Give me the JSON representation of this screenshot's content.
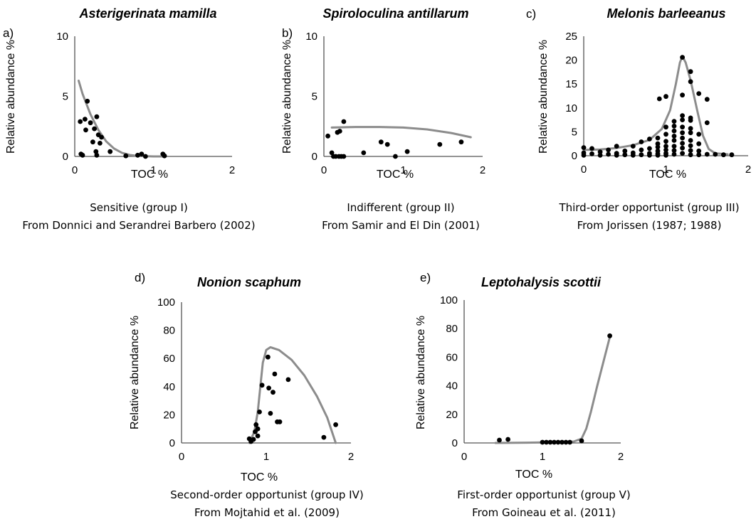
{
  "colors": {
    "points": "#000000",
    "curve": "#8c8c8c",
    "axis": "#555555"
  },
  "chart_data": [
    {
      "type": "scatter",
      "panel_letter": "a)",
      "title": "Asterigerinata mamilla",
      "xlabel": "TOC %",
      "ylabel": "Relative abundance %",
      "xlim": [
        0,
        2
      ],
      "ylim": [
        0,
        10
      ],
      "x_ticks": [
        "0",
        "1",
        "2"
      ],
      "y_ticks": [
        "0",
        "5",
        "10"
      ],
      "caption_line1": "Sensitive (group I)",
      "caption_line2": "From Donnici and Serandrei Barbero (2002)",
      "points": [
        [
          0.07,
          2.9
        ],
        [
          0.08,
          0.2
        ],
        [
          0.1,
          0.1
        ],
        [
          0.13,
          3.1
        ],
        [
          0.14,
          2.2
        ],
        [
          0.16,
          4.6
        ],
        [
          0.2,
          2.8
        ],
        [
          0.23,
          1.2
        ],
        [
          0.25,
          2.3
        ],
        [
          0.27,
          0.4
        ],
        [
          0.28,
          0.1
        ],
        [
          0.28,
          3.3
        ],
        [
          0.3,
          1.8
        ],
        [
          0.32,
          1.1
        ],
        [
          0.34,
          1.6
        ],
        [
          0.45,
          0.4
        ],
        [
          0.65,
          0.05
        ],
        [
          0.8,
          0.1
        ],
        [
          0.85,
          0.2
        ],
        [
          0.9,
          0.0
        ],
        [
          1.12,
          0.2
        ],
        [
          1.14,
          0.05
        ]
      ],
      "fit_curve": [
        [
          0.05,
          6.3
        ],
        [
          0.1,
          5.2
        ],
        [
          0.2,
          3.5
        ],
        [
          0.3,
          2.2
        ],
        [
          0.4,
          1.25
        ],
        [
          0.5,
          0.65
        ],
        [
          0.6,
          0.3
        ],
        [
          0.7,
          0.12
        ],
        [
          0.8,
          0.05
        ],
        [
          1.0,
          0.0
        ],
        [
          1.15,
          0.0
        ]
      ]
    },
    {
      "type": "scatter",
      "panel_letter": "b)",
      "title": "Spiroloculina antillarum",
      "xlabel": "TOC %",
      "ylabel": "Relative abundance %",
      "xlim": [
        0,
        2
      ],
      "ylim": [
        0,
        10
      ],
      "x_ticks": [
        "0",
        "1",
        "2"
      ],
      "y_ticks": [
        "0",
        "5",
        "10"
      ],
      "caption_line1": "Indifferent (group II)",
      "caption_line2": "From Samir and El Din (2001)",
      "points": [
        [
          0.05,
          1.7
        ],
        [
          0.1,
          0.3
        ],
        [
          0.12,
          0.0
        ],
        [
          0.15,
          0.0
        ],
        [
          0.17,
          2.0
        ],
        [
          0.19,
          0.0
        ],
        [
          0.2,
          2.1
        ],
        [
          0.22,
          0.0
        ],
        [
          0.25,
          2.9
        ],
        [
          0.25,
          0.0
        ],
        [
          0.5,
          0.3
        ],
        [
          0.72,
          1.2
        ],
        [
          0.8,
          1.0
        ],
        [
          0.9,
          0.0
        ],
        [
          1.05,
          0.4
        ],
        [
          1.46,
          1.0
        ],
        [
          1.73,
          1.2
        ]
      ],
      "fit_curve": [
        [
          0.1,
          2.4
        ],
        [
          0.4,
          2.45
        ],
        [
          0.7,
          2.45
        ],
        [
          1.0,
          2.4
        ],
        [
          1.3,
          2.25
        ],
        [
          1.6,
          1.95
        ],
        [
          1.85,
          1.6
        ]
      ]
    },
    {
      "type": "scatter",
      "panel_letter": "c)",
      "title": "Melonis barleeanus",
      "xlabel": "TOC %",
      "ylabel": "Relative abundance %",
      "xlim": [
        0,
        2
      ],
      "ylim": [
        0,
        25
      ],
      "x_ticks": [
        "0",
        "1",
        "2"
      ],
      "y_ticks": [
        "0",
        "5",
        "10",
        "15",
        "20",
        "25"
      ],
      "caption_line1": "Third-order opportunist (group III)",
      "caption_line2": "From Jorissen (1987; 1988)",
      "points": [
        [
          0.0,
          1.7
        ],
        [
          0.0,
          0.6
        ],
        [
          0.0,
          0.1
        ],
        [
          0.1,
          1.5
        ],
        [
          0.1,
          0.4
        ],
        [
          0.2,
          0.8
        ],
        [
          0.2,
          0.1
        ],
        [
          0.3,
          1.2
        ],
        [
          0.3,
          0.3
        ],
        [
          0.4,
          2.0
        ],
        [
          0.4,
          0.5
        ],
        [
          0.4,
          0.1
        ],
        [
          0.5,
          1.0
        ],
        [
          0.5,
          0.2
        ],
        [
          0.6,
          2.0
        ],
        [
          0.6,
          0.6
        ],
        [
          0.6,
          0.1
        ],
        [
          0.7,
          1.2
        ],
        [
          0.7,
          2.9
        ],
        [
          0.7,
          0.2
        ],
        [
          0.8,
          1.5
        ],
        [
          0.8,
          0.5
        ],
        [
          0.8,
          0.1
        ],
        [
          0.8,
          3.5
        ],
        [
          0.9,
          2.5
        ],
        [
          0.9,
          1.8
        ],
        [
          0.9,
          1.0
        ],
        [
          0.9,
          0.4
        ],
        [
          0.9,
          0.1
        ],
        [
          0.92,
          11.9
        ],
        [
          0.9,
          3.7
        ],
        [
          1.0,
          12.4
        ],
        [
          1.0,
          6.0
        ],
        [
          1.0,
          4.5
        ],
        [
          1.0,
          3.0
        ],
        [
          1.0,
          2.0
        ],
        [
          1.0,
          1.2
        ],
        [
          1.0,
          0.5
        ],
        [
          1.0,
          0.1
        ],
        [
          1.1,
          7.2
        ],
        [
          1.1,
          6.2
        ],
        [
          1.1,
          5.2
        ],
        [
          1.1,
          4.1
        ],
        [
          1.1,
          3.2
        ],
        [
          1.1,
          2.0
        ],
        [
          1.1,
          1.1
        ],
        [
          1.1,
          0.3
        ],
        [
          1.2,
          8.4
        ],
        [
          1.2,
          7.5
        ],
        [
          1.2,
          6.0
        ],
        [
          1.2,
          4.8
        ],
        [
          1.2,
          3.7
        ],
        [
          1.2,
          2.6
        ],
        [
          1.2,
          1.6
        ],
        [
          1.2,
          0.5
        ],
        [
          1.2,
          12.7
        ],
        [
          1.2,
          20.6
        ],
        [
          1.3,
          7.9
        ],
        [
          1.3,
          7.4
        ],
        [
          1.3,
          5.7
        ],
        [
          1.3,
          4.8
        ],
        [
          1.3,
          3.2
        ],
        [
          1.3,
          2.1
        ],
        [
          1.3,
          1.1
        ],
        [
          1.3,
          0.2
        ],
        [
          1.3,
          17.6
        ],
        [
          1.3,
          15.5
        ],
        [
          1.4,
          4.5
        ],
        [
          1.4,
          2.5
        ],
        [
          1.4,
          1.0
        ],
        [
          1.4,
          0.2
        ],
        [
          1.4,
          13.0
        ],
        [
          1.5,
          11.8
        ],
        [
          1.5,
          6.9
        ],
        [
          1.5,
          0.3
        ],
        [
          1.6,
          0.3
        ],
        [
          1.7,
          0.2
        ],
        [
          1.8,
          0.2
        ]
      ],
      "fit_curve": [
        [
          0.0,
          1.2
        ],
        [
          0.2,
          1.3
        ],
        [
          0.4,
          1.6
        ],
        [
          0.6,
          2.2
        ],
        [
          0.8,
          3.3
        ],
        [
          0.95,
          5.6
        ],
        [
          1.05,
          9.5
        ],
        [
          1.12,
          15.0
        ],
        [
          1.17,
          19.5
        ],
        [
          1.2,
          20.8
        ],
        [
          1.24,
          19.5
        ],
        [
          1.3,
          15.8
        ],
        [
          1.38,
          9.5
        ],
        [
          1.45,
          4.2
        ],
        [
          1.52,
          1.4
        ],
        [
          1.6,
          0.5
        ],
        [
          1.75,
          0.3
        ]
      ]
    },
    {
      "type": "scatter",
      "panel_letter": "d)",
      "title": "Nonion scaphum",
      "xlabel": "TOC %",
      "ylabel": "Relative abundance %",
      "xlim": [
        0,
        2
      ],
      "ylim": [
        0,
        100
      ],
      "x_ticks": [
        "0",
        "1",
        "2"
      ],
      "y_ticks": [
        "0",
        "20",
        "40",
        "60",
        "80",
        "100"
      ],
      "caption_line1": "Second-order opportunist (group IV)",
      "caption_line2": "From Mojtahid et al. (2009)",
      "points": [
        [
          0.8,
          3.0
        ],
        [
          0.82,
          1.0
        ],
        [
          0.85,
          2.5
        ],
        [
          0.87,
          8.0
        ],
        [
          0.88,
          13.0
        ],
        [
          0.9,
          10.0
        ],
        [
          0.9,
          5.0
        ],
        [
          0.92,
          22.0
        ],
        [
          0.95,
          41.0
        ],
        [
          1.02,
          61.0
        ],
        [
          1.03,
          39.0
        ],
        [
          1.05,
          21.0
        ],
        [
          1.08,
          36.0
        ],
        [
          1.1,
          49.0
        ],
        [
          1.13,
          15.0
        ],
        [
          1.16,
          15.0
        ],
        [
          1.26,
          45.0
        ],
        [
          1.68,
          4.0
        ],
        [
          1.82,
          13.0
        ]
      ],
      "fit_curve": [
        [
          0.8,
          0.0
        ],
        [
          0.86,
          8.0
        ],
        [
          0.9,
          22.0
        ],
        [
          0.93,
          40.0
        ],
        [
          0.96,
          57.0
        ],
        [
          1.0,
          66.0
        ],
        [
          1.05,
          68.0
        ],
        [
          1.15,
          66.0
        ],
        [
          1.3,
          59.0
        ],
        [
          1.45,
          48.0
        ],
        [
          1.6,
          33.0
        ],
        [
          1.72,
          18.0
        ],
        [
          1.82,
          0.0
        ]
      ]
    },
    {
      "type": "scatter",
      "panel_letter": "e)",
      "title": "Leptohalysis scottii",
      "xlabel": "TOC %",
      "ylabel": "Relative abundance %",
      "xlim": [
        0,
        2
      ],
      "ylim": [
        0,
        100
      ],
      "x_ticks": [
        "0",
        "1",
        "2"
      ],
      "y_ticks": [
        "0",
        "20",
        "40",
        "60",
        "80",
        "100"
      ],
      "caption_line1": "First-order opportunist (group V)",
      "caption_line2": "From Goineau et al. (2011)",
      "points": [
        [
          0.45,
          2.0
        ],
        [
          0.56,
          2.5
        ],
        [
          1.0,
          0.5
        ],
        [
          1.05,
          0.5
        ],
        [
          1.1,
          0.5
        ],
        [
          1.15,
          0.5
        ],
        [
          1.2,
          0.5
        ],
        [
          1.25,
          0.5
        ],
        [
          1.3,
          0.5
        ],
        [
          1.35,
          0.5
        ],
        [
          1.5,
          1.5
        ],
        [
          1.86,
          75.0
        ]
      ],
      "fit_curve": [
        [
          0.4,
          0.0
        ],
        [
          0.8,
          0.2
        ],
        [
          1.2,
          0.5
        ],
        [
          1.4,
          1.0
        ],
        [
          1.5,
          3.0
        ],
        [
          1.56,
          10.0
        ],
        [
          1.62,
          22.0
        ],
        [
          1.7,
          40.0
        ],
        [
          1.78,
          57.0
        ],
        [
          1.86,
          74.0
        ]
      ]
    }
  ]
}
